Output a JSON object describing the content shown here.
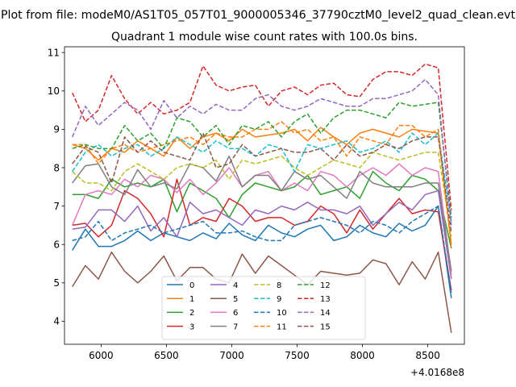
{
  "figure": {
    "suptitle": "Plot from file: modeM0/AS1T05_057T01_9000005346_37790cztM0_level2_quad_clean.evt",
    "title": "Quadrant 1 module wise count rates with 100.0s bins.",
    "x_offset_label": "+4.0168e8"
  },
  "chart_data": {
    "type": "line",
    "title": "Quadrant 1 module wise count rates with 100.0s bins.",
    "xlabel": "",
    "ylabel": "",
    "x_offset": "+4.0168e8",
    "xlim": [
      5720,
      8780
    ],
    "ylim": [
      3.4,
      11.15
    ],
    "xticks": [
      6000,
      6500,
      7000,
      7500,
      8000,
      8500
    ],
    "yticks": [
      4,
      5,
      6,
      7,
      8,
      9,
      10,
      11
    ],
    "x": [
      5780,
      5880,
      5980,
      6080,
      6180,
      6280,
      6380,
      6480,
      6580,
      6680,
      6780,
      6880,
      6980,
      7080,
      7180,
      7280,
      7380,
      7480,
      7580,
      7680,
      7780,
      7880,
      7980,
      8080,
      8180,
      8280,
      8380,
      8480,
      8580,
      8680
    ],
    "legend": {
      "position": "lower-center",
      "columns": 4
    },
    "series": [
      {
        "name": "0",
        "color": "#1f77b4",
        "dash": "solid",
        "values": [
          5.85,
          6.4,
          5.95,
          5.95,
          6.1,
          6.35,
          6.1,
          6.3,
          6.2,
          6.1,
          6.3,
          6.15,
          6.55,
          6.25,
          6.1,
          6.5,
          6.3,
          6.2,
          6.4,
          6.5,
          6.1,
          6.2,
          6.5,
          6.3,
          6.2,
          6.55,
          6.35,
          6.5,
          7.0,
          4.6
        ]
      },
      {
        "name": "1",
        "color": "#ff7f0e",
        "dash": "solid",
        "values": [
          8.6,
          8.5,
          8.2,
          8.5,
          8.4,
          8.7,
          8.5,
          8.3,
          8.8,
          8.5,
          8.8,
          8.9,
          8.7,
          9.0,
          8.8,
          8.85,
          8.9,
          9.0,
          8.7,
          9.05,
          8.8,
          8.6,
          8.9,
          9.0,
          8.9,
          8.8,
          9.0,
          8.95,
          8.9,
          6.0
        ]
      },
      {
        "name": "2",
        "color": "#2ca02c",
        "dash": "solid",
        "values": [
          7.3,
          7.3,
          7.2,
          7.7,
          7.5,
          7.6,
          7.5,
          7.7,
          6.85,
          7.6,
          7.4,
          7.2,
          6.7,
          7.3,
          7.6,
          7.5,
          7.4,
          7.5,
          7.8,
          7.3,
          7.4,
          7.5,
          7.2,
          7.9,
          7.6,
          7.4,
          7.8,
          7.7,
          7.4,
          5.9
        ]
      },
      {
        "name": "3",
        "color": "#d62728",
        "dash": "solid",
        "values": [
          6.5,
          6.55,
          6.2,
          6.5,
          7.4,
          7.2,
          6.8,
          6.2,
          7.7,
          6.5,
          6.7,
          6.6,
          7.2,
          7.0,
          6.6,
          6.7,
          6.7,
          6.5,
          6.6,
          7.0,
          6.8,
          6.3,
          6.9,
          6.4,
          6.8,
          7.2,
          6.8,
          6.9,
          6.85,
          4.8
        ]
      },
      {
        "name": "4",
        "color": "#9467bd",
        "dash": "solid",
        "values": [
          6.4,
          6.45,
          6.9,
          6.9,
          6.6,
          7.0,
          6.35,
          6.7,
          6.2,
          7.1,
          6.8,
          6.9,
          6.7,
          6.5,
          6.9,
          6.8,
          7.0,
          6.9,
          7.1,
          6.9,
          6.9,
          6.8,
          7.0,
          6.5,
          6.8,
          7.1,
          6.9,
          7.3,
          7.4,
          5.1
        ]
      },
      {
        "name": "5",
        "color": "#8c564b",
        "dash": "solid",
        "values": [
          4.9,
          5.45,
          5.1,
          5.8,
          5.3,
          5.0,
          5.3,
          5.7,
          5.05,
          5.4,
          5.4,
          5.1,
          5.0,
          5.75,
          5.25,
          5.7,
          5.45,
          5.2,
          4.95,
          5.3,
          5.25,
          5.2,
          5.25,
          5.6,
          5.5,
          4.95,
          5.55,
          5.1,
          5.8,
          3.7
        ]
      },
      {
        "name": "6",
        "color": "#e377c2",
        "dash": "solid",
        "values": [
          6.5,
          7.3,
          7.4,
          7.3,
          7.7,
          7.5,
          7.8,
          7.7,
          7.35,
          7.7,
          7.3,
          7.6,
          8.0,
          7.5,
          7.8,
          7.9,
          7.4,
          7.6,
          7.4,
          7.9,
          7.8,
          7.5,
          7.8,
          8.0,
          7.8,
          8.1,
          7.8,
          8.0,
          7.9,
          5.2
        ]
      },
      {
        "name": "7",
        "color": "#7f7f7f",
        "dash": "solid",
        "values": [
          7.6,
          8.05,
          8.1,
          7.5,
          7.3,
          7.95,
          7.5,
          7.6,
          7.45,
          8.1,
          8.0,
          7.65,
          8.3,
          7.5,
          7.8,
          7.8,
          7.4,
          7.9,
          7.7,
          7.8,
          7.5,
          7.2,
          7.9,
          7.6,
          7.5,
          7.5,
          7.5,
          7.6,
          7.6,
          5.3
        ]
      },
      {
        "name": "8",
        "color": "#bcbd22",
        "dash": "dashed",
        "values": [
          7.9,
          7.6,
          7.6,
          7.4,
          7.9,
          8.1,
          7.9,
          7.7,
          8.0,
          8.1,
          8.0,
          8.2,
          7.7,
          8.2,
          8.1,
          8.2,
          8.3,
          8.0,
          7.8,
          8.0,
          8.2,
          8.1,
          8.0,
          8.4,
          8.3,
          8.2,
          8.3,
          8.4,
          8.4,
          6.2
        ]
      },
      {
        "name": "9",
        "color": "#17becf",
        "dash": "dashed",
        "values": [
          7.9,
          8.4,
          8.6,
          8.3,
          8.5,
          8.6,
          8.3,
          8.5,
          8.8,
          8.6,
          8.4,
          8.7,
          8.5,
          8.5,
          8.3,
          8.6,
          8.5,
          7.9,
          8.6,
          8.5,
          8.6,
          8.7,
          8.4,
          8.5,
          8.7,
          8.4,
          8.9,
          8.6,
          8.9,
          6.6
        ]
      },
      {
        "name": "10",
        "color": "#1f77b4",
        "dash": "dashed",
        "values": [
          6.1,
          6.2,
          6.6,
          6.1,
          6.3,
          6.4,
          6.5,
          6.3,
          6.4,
          6.5,
          6.6,
          6.3,
          6.3,
          6.35,
          6.2,
          6.1,
          6.1,
          6.5,
          6.6,
          6.7,
          6.6,
          6.5,
          6.3,
          6.6,
          6.5,
          6.3,
          6.6,
          6.8,
          7.0,
          4.75
        ]
      },
      {
        "name": "11",
        "color": "#ff7f0e",
        "dash": "dashed",
        "values": [
          8.6,
          8.6,
          8.1,
          8.5,
          8.6,
          8.4,
          8.5,
          8.6,
          8.7,
          8.8,
          8.6,
          8.9,
          8.8,
          8.8,
          9.0,
          9.0,
          9.2,
          8.9,
          9.0,
          8.7,
          8.8,
          8.3,
          8.8,
          8.7,
          8.6,
          9.1,
          9.1,
          8.8,
          9.0,
          5.9
        ]
      },
      {
        "name": "12",
        "color": "#2ca02c",
        "dash": "dashed",
        "values": [
          8.5,
          8.6,
          8.5,
          8.5,
          9.1,
          8.7,
          8.9,
          8.5,
          9.3,
          9.2,
          8.8,
          9.1,
          8.6,
          9.1,
          9.0,
          9.2,
          8.8,
          9.2,
          9.4,
          8.9,
          9.3,
          9.5,
          9.5,
          9.4,
          9.3,
          9.7,
          9.6,
          9.65,
          9.7,
          6.7
        ]
      },
      {
        "name": "13",
        "color": "#d62728",
        "dash": "dashed",
        "values": [
          9.95,
          9.2,
          9.5,
          10.4,
          9.8,
          9.4,
          9.7,
          9.4,
          9.5,
          9.7,
          10.65,
          10.15,
          10.0,
          10.1,
          10.15,
          9.6,
          10.0,
          10.1,
          9.9,
          10.15,
          10.2,
          9.9,
          9.85,
          10.3,
          10.5,
          10.5,
          10.4,
          10.7,
          10.6,
          6.9
        ]
      },
      {
        "name": "14",
        "color": "#9467bd",
        "dash": "dashed",
        "values": [
          8.8,
          9.6,
          9.1,
          9.4,
          9.7,
          9.5,
          9.0,
          9.75,
          9.3,
          9.6,
          9.4,
          9.65,
          9.5,
          9.5,
          9.8,
          9.9,
          9.6,
          9.5,
          9.6,
          9.8,
          9.7,
          9.6,
          9.6,
          9.8,
          9.8,
          9.9,
          10.0,
          10.3,
          9.9,
          6.5
        ]
      },
      {
        "name": "15",
        "color": "#8c564b",
        "dash": "dashed",
        "values": [
          8.1,
          8.55,
          8.4,
          7.6,
          8.8,
          8.4,
          8.7,
          8.4,
          8.3,
          8.2,
          8.9,
          8.0,
          8.1,
          8.6,
          8.3,
          8.4,
          8.5,
          8.4,
          8.4,
          8.5,
          8.2,
          8.6,
          8.3,
          8.4,
          8.6,
          8.5,
          8.7,
          8.8,
          8.8,
          6.3
        ]
      }
    ]
  }
}
